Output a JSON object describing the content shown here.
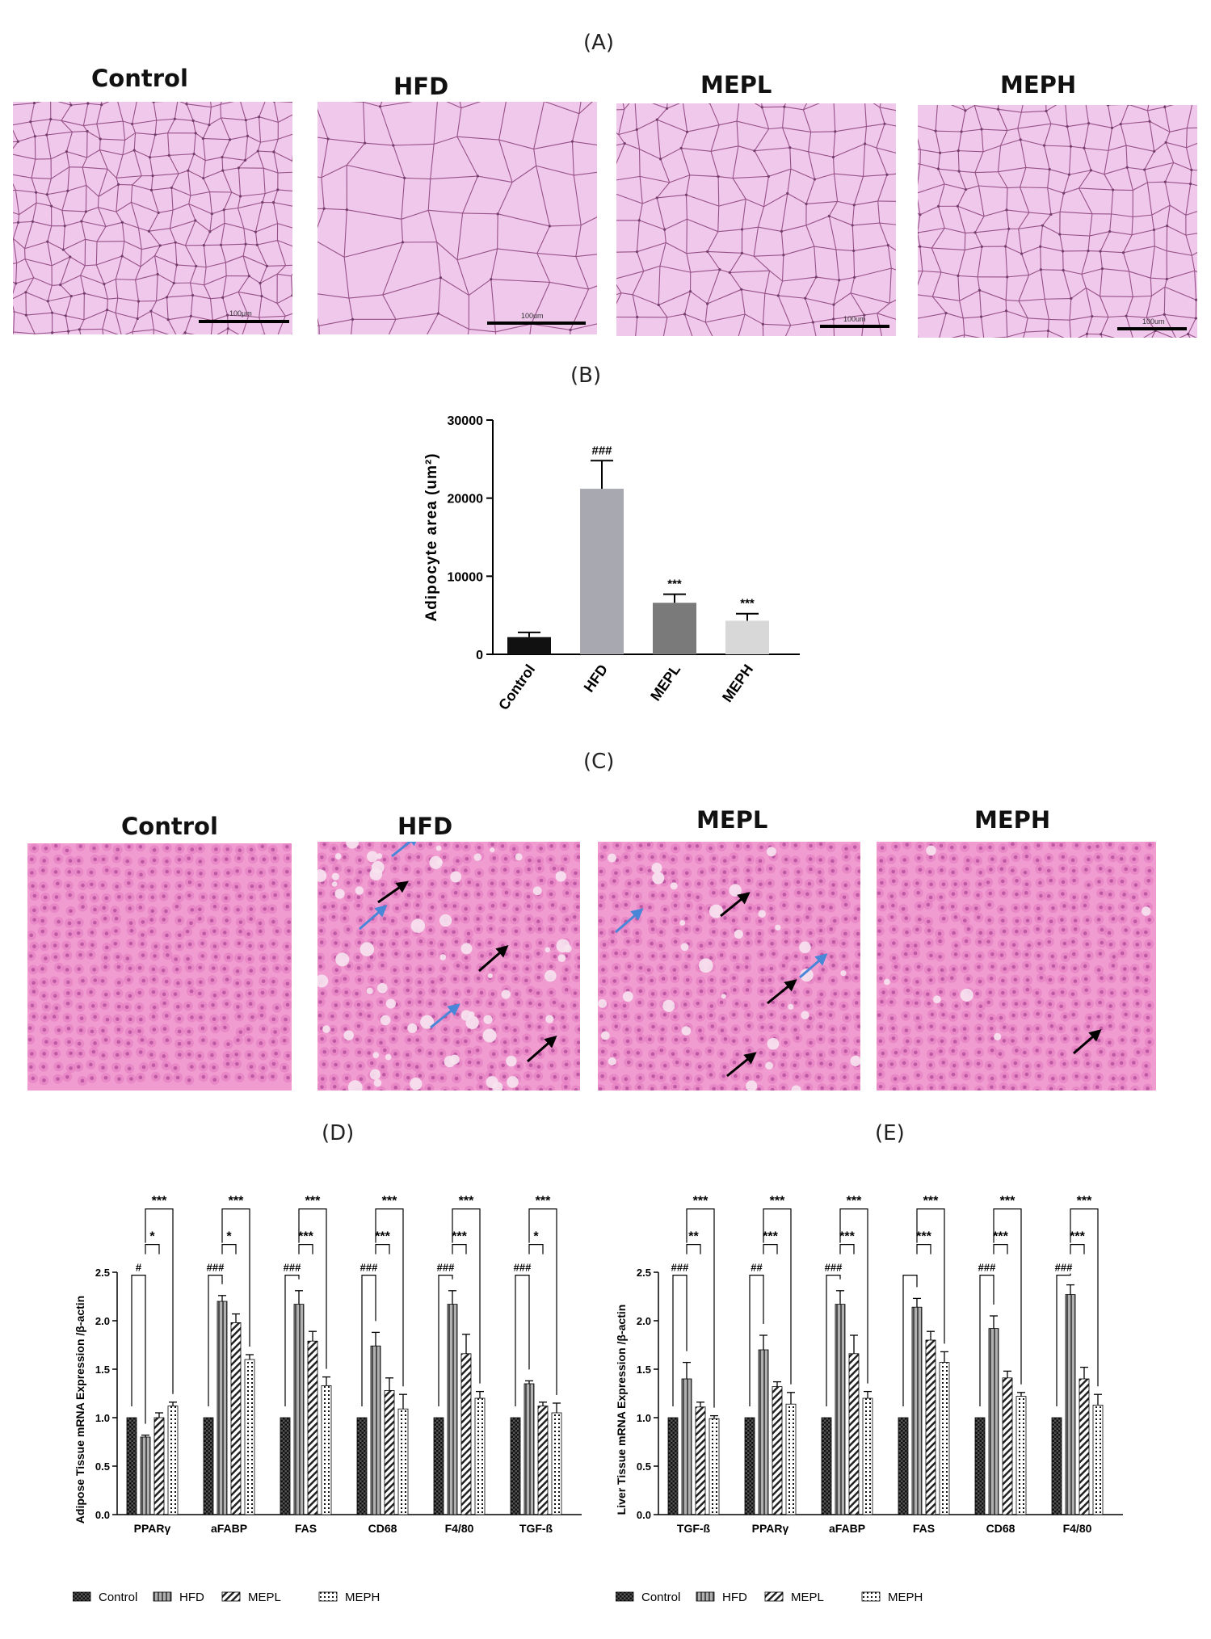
{
  "figure": {
    "panel_a": {
      "letter": "(A)",
      "images": [
        {
          "title": "Control",
          "scale_label": "100μm"
        },
        {
          "title": "HFD",
          "scale_label": "100um"
        },
        {
          "title": "MEPL",
          "scale_label": "100um"
        },
        {
          "title": "MEPH",
          "scale_label": "100um"
        }
      ],
      "tissue_color": "#efc8ec",
      "membrane_color": "#7a2a66"
    },
    "panel_b": {
      "letter": "(B)"
    },
    "panel_c": {
      "letter": "(C)",
      "images": [
        {
          "title": "Control"
        },
        {
          "title": "HFD"
        },
        {
          "title": "MEPL"
        },
        {
          "title": "MEPH"
        }
      ],
      "tissue_color": "#f09cd0",
      "arrow_colors": {
        "black": "#000000",
        "blue": "#4a86d8"
      }
    },
    "panel_d": {
      "letter": "(D)"
    },
    "panel_e": {
      "letter": "(E)"
    }
  },
  "chart_data": [
    {
      "id": "B",
      "type": "bar",
      "ylabel": "Adipocyte area (um²)",
      "categories": [
        "Control",
        "HFD",
        "MEPL",
        "MEPH"
      ],
      "values": [
        2200,
        21200,
        6600,
        4300
      ],
      "errors": [
        600,
        3600,
        1100,
        900
      ],
      "colors": [
        "#111111",
        "#a8a8b0",
        "#7a7a7a",
        "#d8d8d8"
      ],
      "annotations": [
        "",
        "###",
        "***",
        "***"
      ],
      "ylim": [
        0,
        30000
      ],
      "yticks": [
        0,
        10000,
        20000,
        30000
      ]
    },
    {
      "id": "D",
      "type": "bar",
      "ylabel": "Adipose Tissue mRNA Expression /β-actin",
      "categories": [
        "PPARγ",
        "aFABP",
        "FAS",
        "CD68",
        "F4/80",
        "TGF-ß"
      ],
      "series": [
        {
          "name": "Control",
          "values": [
            1.0,
            1.0,
            1.0,
            1.0,
            1.0,
            1.0
          ],
          "errors": [
            0,
            0,
            0,
            0,
            0,
            0
          ]
        },
        {
          "name": "HFD",
          "values": [
            0.8,
            2.2,
            2.17,
            1.74,
            2.17,
            1.35
          ],
          "errors": [
            0.02,
            0.06,
            0.14,
            0.14,
            0.14,
            0.03
          ]
        },
        {
          "name": "MEPL",
          "values": [
            1.0,
            1.98,
            1.79,
            1.28,
            1.66,
            1.12
          ],
          "errors": [
            0.05,
            0.09,
            0.1,
            0.13,
            0.2,
            0.04
          ]
        },
        {
          "name": "MEPH",
          "values": [
            1.12,
            1.6,
            1.33,
            1.09,
            1.2,
            1.05
          ],
          "errors": [
            0.04,
            0.05,
            0.09,
            0.15,
            0.07,
            0.1
          ]
        }
      ],
      "brackets": [
        {
          "label": "#",
          "top": 2.5
        },
        {
          "label": "###",
          "top": 2.5
        },
        {
          "label": "###",
          "top": 2.5
        },
        {
          "label": "###",
          "top": 2.5
        },
        {
          "label": "###",
          "top": 2.5
        },
        {
          "label": "###",
          "top": 2.5
        }
      ],
      "sig_mepl": [
        "*",
        "*",
        "***",
        "***",
        "***",
        "*"
      ],
      "sig_meph": [
        "***",
        "***",
        "***",
        "***",
        "***",
        "***"
      ],
      "ylim": [
        0,
        2.5
      ],
      "yticks": [
        "0.0",
        "0.5",
        "1.0",
        "1.5",
        "2.0",
        "2.5"
      ]
    },
    {
      "id": "E",
      "type": "bar",
      "ylabel": "Liver Tissue mRNA Expression /β-actin",
      "categories": [
        "TGF-ß",
        "PPARγ",
        "aFABP",
        "FAS",
        "CD68",
        "F4/80"
      ],
      "series": [
        {
          "name": "Control",
          "values": [
            1.0,
            1.0,
            1.0,
            1.0,
            1.0,
            1.0
          ],
          "errors": [
            0,
            0,
            0,
            0,
            0,
            0
          ]
        },
        {
          "name": "HFD",
          "values": [
            1.4,
            1.7,
            2.17,
            2.14,
            1.92,
            2.27
          ],
          "errors": [
            0.17,
            0.15,
            0.14,
            0.09,
            0.13,
            0.1
          ]
        },
        {
          "name": "MEPL",
          "values": [
            1.11,
            1.32,
            1.66,
            1.8,
            1.41,
            1.4
          ],
          "errors": [
            0.05,
            0.05,
            0.19,
            0.09,
            0.07,
            0.12
          ]
        },
        {
          "name": "MEPH",
          "values": [
            0.99,
            1.14,
            1.2,
            1.57,
            1.22,
            1.13
          ],
          "errors": [
            0.03,
            0.12,
            0.07,
            0.11,
            0.04,
            0.11
          ]
        }
      ],
      "brackets": [
        {
          "label": "###",
          "top": 2.5
        },
        {
          "label": "##",
          "top": 2.5
        },
        {
          "label": "###",
          "top": 2.5
        },
        {
          "label": "",
          "top": 2.5
        },
        {
          "label": "###",
          "top": 2.5
        },
        {
          "label": "###",
          "top": 2.5
        }
      ],
      "sig_mepl": [
        "**",
        "***",
        "***",
        "***",
        "***",
        "***"
      ],
      "sig_meph": [
        "***",
        "***",
        "***",
        "***",
        "***",
        "***"
      ],
      "ylim": [
        0,
        2.5
      ],
      "yticks": [
        "0.0",
        "0.5",
        "1.0",
        "1.5",
        "2.0",
        "2.5"
      ]
    }
  ]
}
